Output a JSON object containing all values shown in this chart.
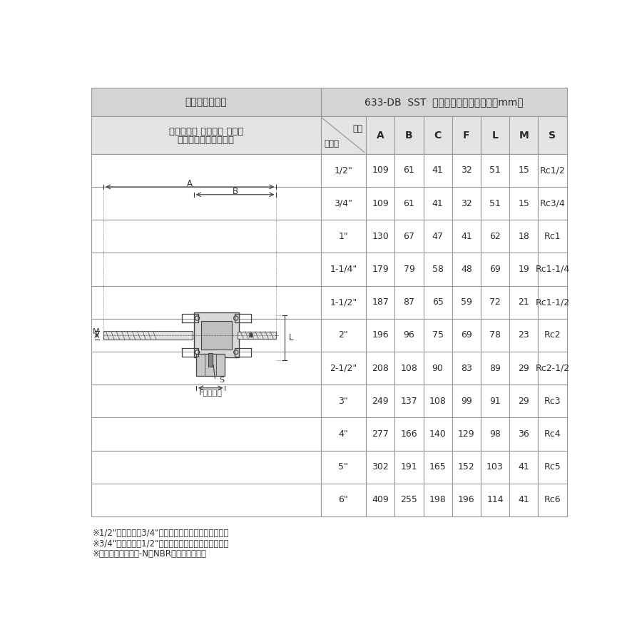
{
  "title_left": "カムアーム継手",
  "title_right": "633-DB  SST  サイズ別寸法表（単位：mm）",
  "subtitle_left": "カムロック カプラー メネジ\nステンレススチール製",
  "header_cols": [
    "A",
    "B",
    "C",
    "F",
    "L",
    "M",
    "S"
  ],
  "header_size_label_top": "位置",
  "header_size_label_bottom": "サイズ",
  "rows": [
    {
      "size": "1/2\"",
      "A": 109,
      "B": 61,
      "C": 41,
      "F": 32,
      "L": 51,
      "M": 15,
      "S": "Rc1/2"
    },
    {
      "size": "3/4\"",
      "A": 109,
      "B": 61,
      "C": 41,
      "F": 32,
      "L": 51,
      "M": 15,
      "S": "Rc3/4"
    },
    {
      "size": "1\"",
      "A": 130,
      "B": 67,
      "C": 47,
      "F": 41,
      "L": 62,
      "M": 18,
      "S": "Rc1"
    },
    {
      "size": "1-1/4\"",
      "A": 179,
      "B": 79,
      "C": 58,
      "F": 48,
      "L": 69,
      "M": 19,
      "S": "Rc1-1/4"
    },
    {
      "size": "1-1/2\"",
      "A": 187,
      "B": 87,
      "C": 65,
      "F": 59,
      "L": 72,
      "M": 21,
      "S": "Rc1-1/2"
    },
    {
      "size": "2\"",
      "A": 196,
      "B": 96,
      "C": 75,
      "F": 69,
      "L": 78,
      "M": 23,
      "S": "Rc2"
    },
    {
      "size": "2-1/2\"",
      "A": 208,
      "B": 108,
      "C": 90,
      "F": 83,
      "L": 89,
      "M": 29,
      "S": "Rc2-1/2"
    },
    {
      "size": "3\"",
      "A": 249,
      "B": 137,
      "C": 108,
      "F": 99,
      "L": 91,
      "M": 29,
      "S": "Rc3"
    },
    {
      "size": "4\"",
      "A": 277,
      "B": 166,
      "C": 140,
      "F": 129,
      "L": 98,
      "M": 36,
      "S": "Rc4"
    },
    {
      "size": "5\"",
      "A": 302,
      "B": 191,
      "C": 165,
      "F": 152,
      "L": 103,
      "M": 41,
      "S": "Rc5"
    },
    {
      "size": "6\"",
      "A": 409,
      "B": 255,
      "C": 198,
      "F": 196,
      "L": 114,
      "M": 41,
      "S": "Rc6"
    }
  ],
  "footnotes": [
    "※1/2\"カプラーは3/4\"アダプターにも接続できます。",
    "※3/4\"カプラーは1/2\"アダプターにも接続できます。",
    "※ガスケットはブナ-N（NBR）を標準装備。"
  ],
  "bg_color": "#ffffff",
  "header_bg": "#d4d4d4",
  "cell_bg": "#ffffff",
  "border_color": "#999999",
  "text_color": "#2a2a2a"
}
